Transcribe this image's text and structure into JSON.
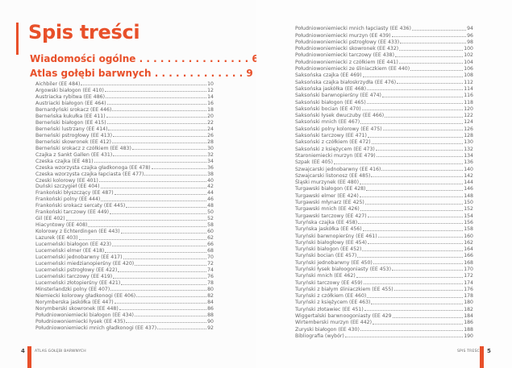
{
  "title": "Spis treści",
  "headings": [
    {
      "label": "Wiadomości ogólne . . . . . . . . . . . . . . . . 6"
    },
    {
      "label": "Atlas gołębi barwnych . . . . . . . . . . . . . 9"
    }
  ],
  "left_entries": [
    {
      "label": "Aichbiler (EE 484)",
      "page": "10"
    },
    {
      "label": "Argowski białogon (EE 410)",
      "page": "12"
    },
    {
      "label": "Austriacka rybitwa (EE 486)",
      "page": "14"
    },
    {
      "label": "Austriacki białogon (EE 464)",
      "page": "16"
    },
    {
      "label": "Bernardyński srokacz (EE 446)",
      "page": "18"
    },
    {
      "label": "Berneńska kukułka (EE 411)",
      "page": "20"
    },
    {
      "label": "Berneński białogon (EE 415)",
      "page": "22"
    },
    {
      "label": "Berneński lustrzany (EE 414)",
      "page": "24"
    },
    {
      "label": "Berneński pstrogłowy (EE 413)",
      "page": "26"
    },
    {
      "label": "Berneński skowronek (EE 412)",
      "page": "28"
    },
    {
      "label": "Berneński srokacz z czółkiem (EE 483)",
      "page": "30"
    },
    {
      "label": "Czajka z Sankt Gallen (EE 431)",
      "page": "32"
    },
    {
      "label": "Czeska czajka (EE 481)",
      "page": "34"
    },
    {
      "label": "Czeska wzorzysta czajka gładkonoga (EE 478)",
      "page": "36"
    },
    {
      "label": "Czeska wzorzysta czajka łapciasta (EE 477)",
      "page": "38"
    },
    {
      "label": "Czeski kolorowy (EE 401)",
      "page": "40"
    },
    {
      "label": "Duński szczygieł (EE 404)",
      "page": "42"
    },
    {
      "label": "Frankoński błyszczący (EE 487)",
      "page": "44"
    },
    {
      "label": "Frankoński polny (EE 444)",
      "page": "46"
    },
    {
      "label": "Frankoński srokacz sercaty (EE 445)",
      "page": "48"
    },
    {
      "label": "Frankoński tarczowy (EE 449)",
      "page": "50"
    },
    {
      "label": "Gil (EE 402)",
      "page": "52"
    },
    {
      "label": "Hiacyntowy (EE 408)",
      "page": "58"
    },
    {
      "label": "Kolorowy z Echterdingen (EE 443)",
      "page": "60"
    },
    {
      "label": "Lazurek (EE 403)",
      "page": "62"
    },
    {
      "label": "Lucerneński białogon (EE 423)",
      "page": "66"
    },
    {
      "label": "Lucerneński elmer (EE 418)",
      "page": "68"
    },
    {
      "label": "Lucerneński jednobarwny (EE 417)",
      "page": "70"
    },
    {
      "label": "Lucerneński miedzianopierśny (EE 420)",
      "page": "72"
    },
    {
      "label": "Lucerneński pstrogłowy (EE 422)",
      "page": "74"
    },
    {
      "label": "Lucerneński tarczowy (EE 419)",
      "page": "76"
    },
    {
      "label": "Lucerneński złotopierśny (EE 421)",
      "page": "78"
    },
    {
      "label": "Minsterlandzki polny (EE 407)",
      "page": "80"
    },
    {
      "label": "Niemiecki kolorowy gładkonogi (EE 406)",
      "page": "82"
    },
    {
      "label": "Norymberska jaskółka (EE 447)",
      "page": "84"
    },
    {
      "label": "Norymberski skowronek (EE 448)",
      "page": "86"
    },
    {
      "label": "Południowoniemiecki białogon (EE 434)",
      "page": "88"
    },
    {
      "label": "Południowoniemiecki łysek (EE 435)",
      "page": "90"
    },
    {
      "label": "Południowoniemiecki mnich gładkonogi (EE 437)",
      "page": "92"
    }
  ],
  "right_entries": [
    {
      "label": "Południowoniemiecki mnich łapciasty (EE 436)",
      "page": "94"
    },
    {
      "label": "Południowoniemiecki murzyn (EE 439)",
      "page": "96"
    },
    {
      "label": "Południowoniemiecki pstrogłowy (EE 433)",
      "page": "98"
    },
    {
      "label": "Południowoniemiecki skowronek (EE 432)",
      "page": "100"
    },
    {
      "label": "Południowoniemiecki tarczowy (EE 438)",
      "page": "102"
    },
    {
      "label": "Południowoniemiecki z czółkiem (EE 441)",
      "page": "104"
    },
    {
      "label": "Południowoniemiecki ze śliniaczkiem (EE 440)",
      "page": "106"
    },
    {
      "label": "Saksońska czajka (EE 469)",
      "page": "108"
    },
    {
      "label": "Saksońska czajka białoskrzydła (EE 476)",
      "page": "112"
    },
    {
      "label": "Saksońska jaskółka (EE 468)",
      "page": "114"
    },
    {
      "label": "Saksoński barwnopierśny (EE 474)",
      "page": "116"
    },
    {
      "label": "Saksoński białogon (EE 465)",
      "page": "118"
    },
    {
      "label": "Saksoński bocian (EE 470)",
      "page": "120"
    },
    {
      "label": "Saksoński łysek dwuczuby (EE 466)",
      "page": "122"
    },
    {
      "label": "Saksoński mnich (EE 467)",
      "page": "124"
    },
    {
      "label": "Saksoński polny kolorowy (EE 475)",
      "page": "126"
    },
    {
      "label": "Saksoński tarczowy (EE 471)",
      "page": "128"
    },
    {
      "label": "Saksoński z czółkiem (EE 472)",
      "page": "130"
    },
    {
      "label": "Saksoński z księżycem (EE 473)",
      "page": "132"
    },
    {
      "label": "Staroniemiecki murzyn (EE 479)",
      "page": "134"
    },
    {
      "label": "Szpak (EE 405)",
      "page": "136"
    },
    {
      "label": "Szwajcarski jednobarwny (EE 416)",
      "page": "140"
    },
    {
      "label": "Szwajcarski listonosz (EE 485)",
      "page": "142"
    },
    {
      "label": "Śląski murzynek (EE 480)",
      "page": "144"
    },
    {
      "label": "Turgawski białogon (EE 428)",
      "page": "146"
    },
    {
      "label": "Turgawski elmer (EE 424)",
      "page": "148"
    },
    {
      "label": "Turgawski młynarz (EE 425)",
      "page": "150"
    },
    {
      "label": "Turgawski mnich (EE 426)",
      "page": "152"
    },
    {
      "label": "Turgawski tarczowy (EE 427)",
      "page": "154"
    },
    {
      "label": "Turyńska czajka (EE 458)",
      "page": "156"
    },
    {
      "label": "Turyńska jaskółka (EE 456)",
      "page": "158"
    },
    {
      "label": "Turyński barwnopierśny (EE 461)",
      "page": "160"
    },
    {
      "label": "Turyński białogłowy (EE 454)",
      "page": "162"
    },
    {
      "label": "Turyński białogon (EE 452)",
      "page": "164"
    },
    {
      "label": "Turyński bocian (EE 457)",
      "page": "166"
    },
    {
      "label": "Turyński jednobarwny (EE 450)",
      "page": "168"
    },
    {
      "label": "Turyński łysek białoogoniasty (EE 453)",
      "page": "170"
    },
    {
      "label": "Turyński mnich (EE 462)",
      "page": "172"
    },
    {
      "label": "Turyński tarczowy (EE 459)",
      "page": "174"
    },
    {
      "label": "Turyński z białym śliniaczkiem (EE 455)",
      "page": "176"
    },
    {
      "label": "Turyński z czółkiem (EE 460)",
      "page": "178"
    },
    {
      "label": "Turyński z księżycem (EE 463)",
      "page": "180"
    },
    {
      "label": "Turyński złotawiec (EE 451)",
      "page": "182"
    },
    {
      "label": "Wiggertalski barwnoogoniasty (EE 429",
      "page": "184"
    },
    {
      "label": "Wirtemberski murzyn (EE 442)",
      "page": "186"
    },
    {
      "label": "Zuryski białogon (EE 430)",
      "page": "188"
    },
    {
      "label": "Bibliografia (wybór)",
      "page": "190"
    }
  ],
  "footer_left": {
    "page": "4",
    "text": "ATLAS GOŁĘBI BARWNYCH"
  },
  "footer_right": {
    "page": "5",
    "text": "SPIS TREŚCI"
  },
  "colors": {
    "accent": "#e8502a"
  }
}
